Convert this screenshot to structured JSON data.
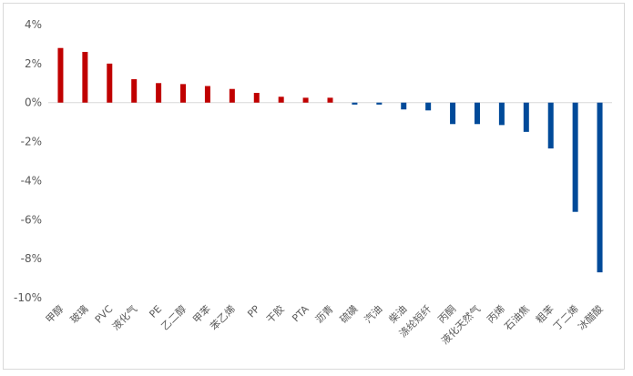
{
  "colors": {
    "positive": "#c00000",
    "negative": "#004a99",
    "axis": "#d9d9d9"
  },
  "chart_data": {
    "type": "bar",
    "title": "",
    "xlabel": "",
    "ylabel": "",
    "ylim": [
      -10,
      4
    ],
    "yticks": [
      4,
      2,
      0,
      -2,
      -4,
      -6,
      -8,
      -10
    ],
    "ytick_labels": [
      "4%",
      "2%",
      "0%",
      "-2%",
      "-4%",
      "-6%",
      "-8%",
      "-10%"
    ],
    "grid": false,
    "legend": "none",
    "categories": [
      "甲醇",
      "玻璃",
      "PVC",
      "液化气",
      "PE",
      "乙二醇",
      "甲苯",
      "苯乙烯",
      "PP",
      "干胶",
      "PTA",
      "沥青",
      "硫磺",
      "汽油",
      "柴油",
      "涤纶短纤",
      "丙酮",
      "液化天然气",
      "丙烯",
      "石油焦",
      "粗苯",
      "丁二烯",
      "冰醋酸"
    ],
    "values": [
      2.8,
      2.6,
      2.0,
      1.2,
      1.0,
      0.95,
      0.85,
      0.7,
      0.5,
      0.3,
      0.25,
      0.25,
      -0.1,
      -0.1,
      -0.35,
      -0.4,
      -1.1,
      -1.1,
      -1.15,
      -1.5,
      -2.35,
      -5.6,
      -8.7
    ]
  }
}
